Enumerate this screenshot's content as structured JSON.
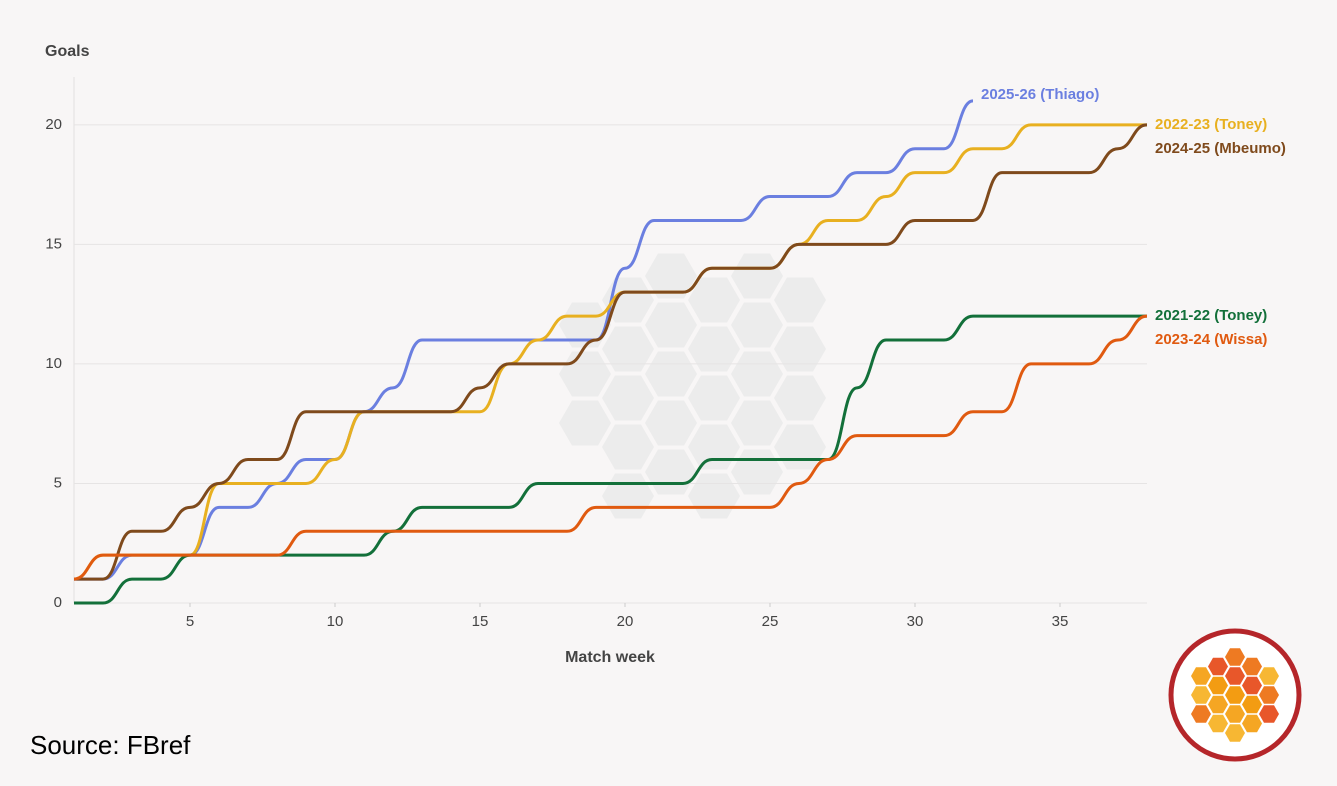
{
  "chart_data": {
    "type": "line",
    "y_label": "Goals",
    "x_label": "Match week",
    "source": "Source: FBref",
    "x": [
      1,
      2,
      3,
      4,
      5,
      6,
      7,
      8,
      9,
      10,
      11,
      12,
      13,
      14,
      15,
      16,
      17,
      18,
      19,
      20,
      21,
      22,
      23,
      24,
      25,
      26,
      27,
      28,
      29,
      30,
      31,
      32,
      33,
      34,
      35,
      36,
      37,
      38
    ],
    "xlim": [
      1,
      38
    ],
    "xticks": [
      5,
      10,
      15,
      20,
      25,
      30,
      35
    ],
    "ylim": [
      0,
      22
    ],
    "yticks": [
      0,
      5,
      10,
      15,
      20
    ],
    "grid": true,
    "series": [
      {
        "name": "2025-26 (Thiago)",
        "color": "#6b7fe0",
        "values": [
          1,
          1,
          2,
          2,
          2,
          4,
          4,
          5,
          6,
          6,
          8,
          9,
          11,
          11,
          11,
          11,
          11,
          11,
          11,
          14,
          16,
          16,
          16,
          16,
          17,
          17,
          17,
          18,
          18,
          19,
          19,
          21,
          null,
          null,
          null,
          null,
          null,
          null
        ]
      },
      {
        "name": "2022-23 (Toney)",
        "color": "#e8b020",
        "values": [
          1,
          2,
          2,
          2,
          2,
          5,
          5,
          5,
          5,
          6,
          8,
          8,
          8,
          8,
          8,
          10,
          11,
          12,
          12,
          13,
          13,
          13,
          14,
          14,
          14,
          15,
          16,
          16,
          17,
          18,
          18,
          19,
          19,
          20,
          20,
          20,
          20,
          20
        ]
      },
      {
        "name": "2024-25 (Mbeumo)",
        "color": "#7f4a1c",
        "values": [
          1,
          1,
          3,
          3,
          4,
          5,
          6,
          6,
          8,
          8,
          8,
          8,
          8,
          8,
          9,
          10,
          10,
          10,
          11,
          13,
          13,
          13,
          14,
          14,
          14,
          15,
          15,
          15,
          15,
          16,
          16,
          16,
          18,
          18,
          18,
          18,
          19,
          20
        ]
      },
      {
        "name": "2021-22 (Toney)",
        "color": "#13703a",
        "values": [
          0,
          0,
          1,
          1,
          2,
          2,
          2,
          2,
          2,
          2,
          2,
          3,
          4,
          4,
          4,
          4,
          5,
          5,
          5,
          5,
          5,
          5,
          6,
          6,
          6,
          6,
          6,
          9,
          11,
          11,
          11,
          12,
          12,
          12,
          12,
          12,
          12,
          12
        ]
      },
      {
        "name": "2023-24 (Wissa)",
        "color": "#e05a10",
        "values": [
          1,
          2,
          2,
          2,
          2,
          2,
          2,
          2,
          3,
          3,
          3,
          3,
          3,
          3,
          3,
          3,
          3,
          3,
          4,
          4,
          4,
          4,
          4,
          4,
          4,
          5,
          6,
          7,
          7,
          7,
          7,
          8,
          8,
          10,
          10,
          10,
          11,
          12
        ]
      }
    ]
  }
}
